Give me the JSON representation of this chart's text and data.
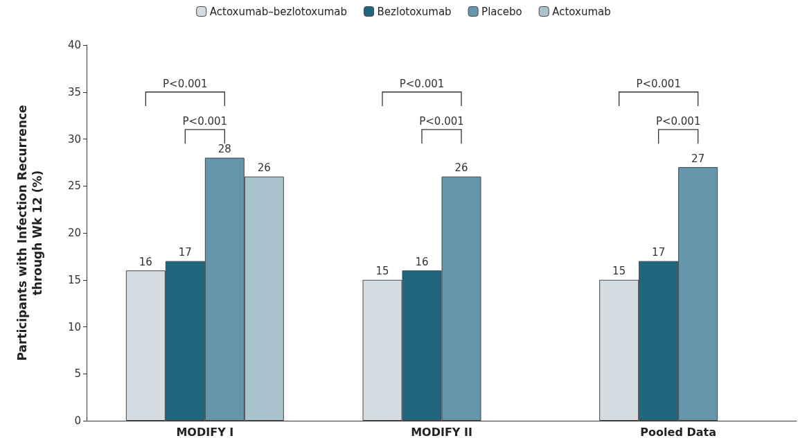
{
  "chart_data": {
    "type": "bar",
    "ylabel": "Participants with Infection Recurrence\nthrough Wk 12 (%)",
    "categories": [
      "MODIFY I",
      "MODIFY II",
      "Pooled Data"
    ],
    "series": [
      {
        "name": "Actoxumab–bezlotoxumab",
        "color": "#d5dde3",
        "values": [
          16,
          15,
          15
        ]
      },
      {
        "name": "Bezlotoxumab",
        "color": "#21667f",
        "values": [
          17,
          16,
          17
        ]
      },
      {
        "name": "Placebo",
        "color": "#6596ac",
        "values": [
          28,
          26,
          27
        ]
      },
      {
        "name": "Actoxumab",
        "color": "#a9c3cf",
        "values": [
          26,
          null,
          null
        ]
      }
    ],
    "ylim": [
      0,
      40
    ],
    "yticks": [
      0,
      5,
      10,
      15,
      20,
      25,
      30,
      35,
      40
    ],
    "grid": false,
    "legend": "top",
    "data_labels": true,
    "annotations": [
      "P<0.001",
      "P<0.001",
      "P<0.001",
      "P<0.001",
      "P<0.001",
      "P<0.001"
    ]
  }
}
